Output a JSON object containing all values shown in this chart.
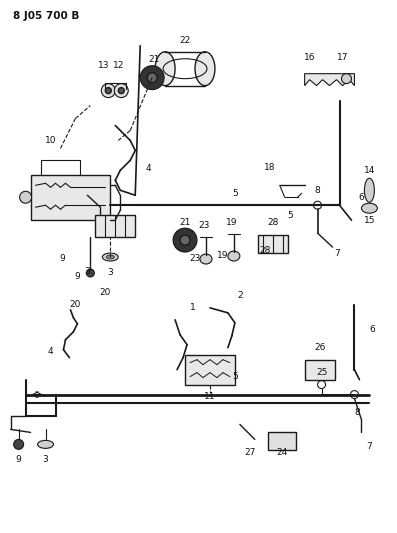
{
  "title": "8 J05 700 B",
  "bg_color": "#ffffff",
  "line_color": "#1a1a1a",
  "label_color": "#111111",
  "title_fontsize": 7.5,
  "label_fontsize": 6.5,
  "fig_width": 3.97,
  "fig_height": 5.33,
  "dpi": 100
}
